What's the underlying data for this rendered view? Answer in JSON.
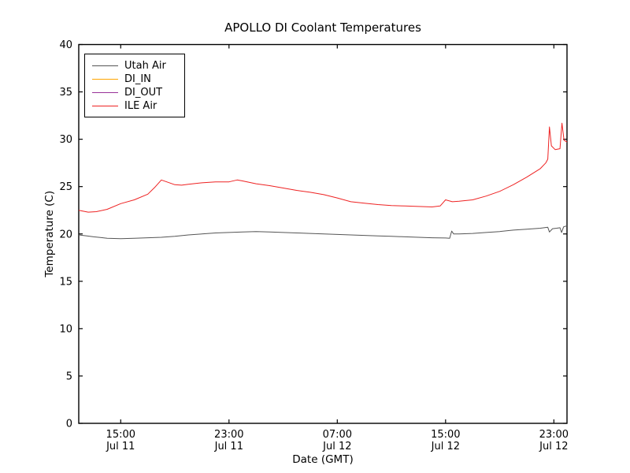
{
  "window": {
    "title": "APOLLO DI Coolant Temperatures"
  },
  "chart_data": {
    "type": "line",
    "title": "APOLLO DI Coolant Temperatures",
    "xlabel": "Date (GMT)",
    "ylabel": "Temperature (C)",
    "ylim": [
      0,
      40
    ],
    "yticks": [
      0,
      5,
      10,
      15,
      20,
      25,
      30,
      35,
      40
    ],
    "x_unit": "hours since Jul 11 00:00 GMT",
    "x_domain_hours": [
      11.9,
      47.97
    ],
    "xticks": [
      {
        "t": 15,
        "line1": "15:00",
        "line2": "Jul 11"
      },
      {
        "t": 23,
        "line1": "23:00",
        "line2": "Jul 11"
      },
      {
        "t": 31,
        "line1": "07:00",
        "line2": "Jul 12"
      },
      {
        "t": 39,
        "line1": "15:00",
        "line2": "Jul 12"
      },
      {
        "t": 47,
        "line1": "23:00",
        "line2": "Jul 12"
      }
    ],
    "grid": false,
    "legend_position": "upper left",
    "series": [
      {
        "name": "Utah Air",
        "color": "#555555",
        "points": [
          [
            11.9,
            19.9
          ],
          [
            12.5,
            19.8
          ],
          [
            13,
            19.7
          ],
          [
            13.5,
            19.62
          ],
          [
            14,
            19.55
          ],
          [
            15,
            19.5
          ],
          [
            16,
            19.55
          ],
          [
            17,
            19.6
          ],
          [
            18,
            19.65
          ],
          [
            19,
            19.75
          ],
          [
            20,
            19.9
          ],
          [
            21,
            20.0
          ],
          [
            22,
            20.1
          ],
          [
            23,
            20.15
          ],
          [
            24,
            20.2
          ],
          [
            25,
            20.25
          ],
          [
            26,
            20.2
          ],
          [
            27,
            20.15
          ],
          [
            28,
            20.1
          ],
          [
            29,
            20.05
          ],
          [
            30,
            20.0
          ],
          [
            31,
            19.95
          ],
          [
            32,
            19.9
          ],
          [
            33,
            19.85
          ],
          [
            34,
            19.8
          ],
          [
            35,
            19.75
          ],
          [
            36,
            19.7
          ],
          [
            37,
            19.65
          ],
          [
            38,
            19.6
          ],
          [
            39,
            19.57
          ],
          [
            39.3,
            19.55
          ],
          [
            39.45,
            20.3
          ],
          [
            39.6,
            20.0
          ],
          [
            40,
            20.0
          ],
          [
            41,
            20.05
          ],
          [
            42,
            20.15
          ],
          [
            43,
            20.25
          ],
          [
            44,
            20.4
          ],
          [
            45,
            20.5
          ],
          [
            46,
            20.6
          ],
          [
            46.55,
            20.7
          ],
          [
            46.67,
            20.2
          ],
          [
            46.9,
            20.55
          ],
          [
            47.2,
            20.6
          ],
          [
            47.45,
            20.65
          ],
          [
            47.57,
            20.15
          ],
          [
            47.72,
            20.75
          ],
          [
            47.97,
            20.85
          ]
        ]
      },
      {
        "name": "DI_IN",
        "color": "#ffa500",
        "points": []
      },
      {
        "name": "DI_OUT",
        "color": "#993399",
        "points": []
      },
      {
        "name": "ILE Air",
        "color": "#ee2222",
        "points": [
          [
            11.9,
            22.5
          ],
          [
            12.6,
            22.3
          ],
          [
            13.2,
            22.35
          ],
          [
            14,
            22.6
          ],
          [
            15,
            23.2
          ],
          [
            16,
            23.6
          ],
          [
            17,
            24.2
          ],
          [
            17.5,
            24.9
          ],
          [
            18,
            25.7
          ],
          [
            18.4,
            25.5
          ],
          [
            19,
            25.2
          ],
          [
            19.5,
            25.15
          ],
          [
            20,
            25.25
          ],
          [
            21,
            25.4
          ],
          [
            22,
            25.5
          ],
          [
            23,
            25.5
          ],
          [
            23.6,
            25.7
          ],
          [
            24,
            25.6
          ],
          [
            25,
            25.3
          ],
          [
            26,
            25.1
          ],
          [
            27,
            24.85
          ],
          [
            28,
            24.6
          ],
          [
            29,
            24.4
          ],
          [
            30,
            24.15
          ],
          [
            31,
            23.8
          ],
          [
            32,
            23.4
          ],
          [
            33,
            23.25
          ],
          [
            34,
            23.1
          ],
          [
            35,
            23.0
          ],
          [
            36,
            22.95
          ],
          [
            37,
            22.9
          ],
          [
            38,
            22.85
          ],
          [
            38.6,
            22.95
          ],
          [
            39,
            23.6
          ],
          [
            39.5,
            23.4
          ],
          [
            40,
            23.45
          ],
          [
            41,
            23.6
          ],
          [
            42,
            24.0
          ],
          [
            43,
            24.5
          ],
          [
            44,
            25.2
          ],
          [
            45,
            26.0
          ],
          [
            46,
            26.9
          ],
          [
            46.4,
            27.5
          ],
          [
            46.55,
            27.9
          ],
          [
            46.67,
            31.3
          ],
          [
            46.82,
            29.3
          ],
          [
            47.1,
            28.9
          ],
          [
            47.45,
            29.0
          ],
          [
            47.6,
            31.7
          ],
          [
            47.75,
            29.9
          ],
          [
            47.97,
            29.7
          ]
        ]
      }
    ]
  },
  "legend": {
    "items": [
      {
        "label": "Utah Air"
      },
      {
        "label": "DI_IN"
      },
      {
        "label": "DI_OUT"
      },
      {
        "label": "ILE Air"
      }
    ]
  },
  "colors": {
    "background": "#ffffff",
    "frame": "#000000",
    "utah_air": "#555555",
    "di_in": "#ffa500",
    "di_out": "#993399",
    "ile_air": "#ee2222"
  }
}
